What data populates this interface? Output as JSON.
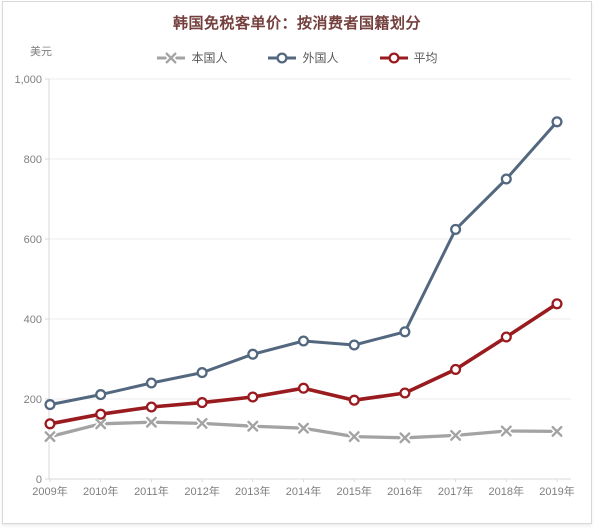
{
  "page": {
    "background": "#ffffff",
    "card_border_color": "#d8d8d8"
  },
  "chart_data": {
    "type": "line",
    "title": "韩国免税客单价：按消费者国籍划分",
    "title_color": "#74403e",
    "ylabel": "美元",
    "xlabel": "",
    "categories": [
      "2009年",
      "2010年",
      "2011年",
      "2012年",
      "2013年",
      "2014年",
      "2015年",
      "2016年",
      "2017年",
      "2018年",
      "2019年"
    ],
    "series": [
      {
        "name": "本国人",
        "marker": "x",
        "color": "#a3a3a3",
        "values": [
          106,
          138,
          142,
          139,
          132,
          127,
          106,
          103,
          109,
          120,
          119
        ]
      },
      {
        "name": "外国人",
        "marker": "circle",
        "color": "#53687f",
        "values": [
          186,
          211,
          240,
          266,
          312,
          345,
          335,
          368,
          624,
          750,
          893
        ]
      },
      {
        "name": "平均",
        "marker": "circle",
        "color": "#9a1b1f",
        "values": [
          138,
          162,
          180,
          191,
          205,
          227,
          197,
          215,
          274,
          355,
          438
        ]
      }
    ],
    "ylim": [
      0,
      1000
    ],
    "ytick_values": [
      0,
      200,
      400,
      600,
      800,
      1000
    ],
    "ytick_labels": [
      "0",
      "200",
      "400",
      "600",
      "800",
      "1,000"
    ],
    "grid": "horizontal",
    "legend_position": "top",
    "grid_color": "#ececec",
    "axis_color": "#d9d9d9",
    "tick_label_color": "#7f7f7f",
    "legend_text_color": "#595959"
  }
}
